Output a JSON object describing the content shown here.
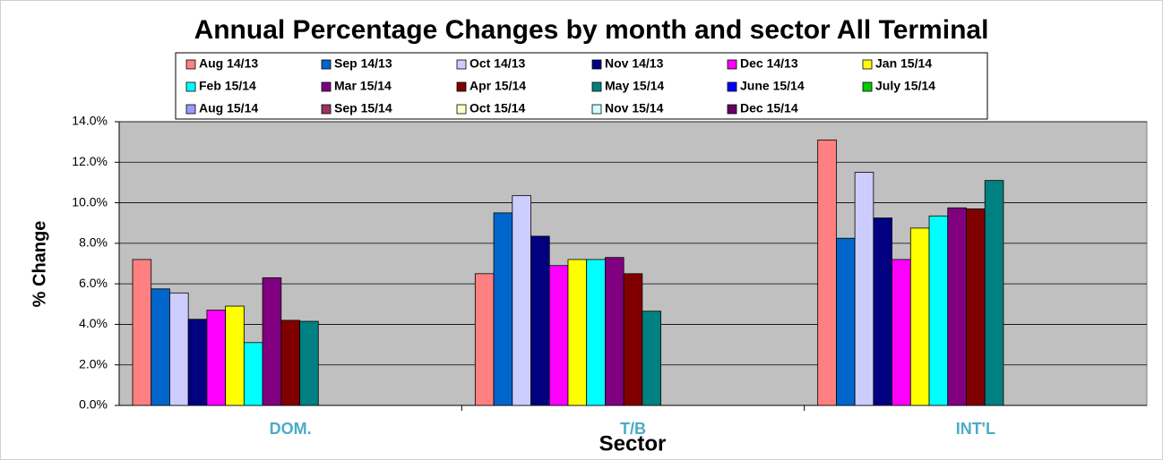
{
  "chart_data": {
    "type": "bar",
    "title": "Annual Percentage Changes by month and sector All Terminal",
    "x_label": "Sector",
    "y_label": "% Change",
    "categories": [
      "DOM.",
      "T/B",
      "INT'L"
    ],
    "ylim": [
      0,
      14
    ],
    "yticks": [
      {
        "value": 0,
        "label": "0.0%"
      },
      {
        "value": 2,
        "label": "2.0%"
      },
      {
        "value": 4,
        "label": "4.0%"
      },
      {
        "value": 6,
        "label": "6.0%"
      },
      {
        "value": 8,
        "label": "8.0%"
      },
      {
        "value": 10,
        "label": "10.0%"
      },
      {
        "value": 12,
        "label": "12.0%"
      },
      {
        "value": 14,
        "label": "14.0%"
      }
    ],
    "grid": true,
    "legend": "top",
    "series": [
      {
        "name": "Aug 14/13",
        "color": "#ff8080",
        "values": [
          7.2,
          6.5,
          13.1
        ]
      },
      {
        "name": "Sep 14/13",
        "color": "#0066cc",
        "values": [
          5.75,
          9.5,
          8.25
        ]
      },
      {
        "name": "Oct 14/13",
        "color": "#ccccff",
        "values": [
          5.55,
          10.35,
          11.5
        ]
      },
      {
        "name": "Nov 14/13",
        "color": "#000080",
        "values": [
          4.25,
          8.35,
          9.25
        ]
      },
      {
        "name": "Dec 14/13",
        "color": "#ff00ff",
        "values": [
          4.7,
          6.9,
          7.2
        ]
      },
      {
        "name": "Jan 15/14",
        "color": "#ffff00",
        "values": [
          4.9,
          7.2,
          8.75
        ]
      },
      {
        "name": "Feb 15/14",
        "color": "#00ffff",
        "values": [
          3.1,
          7.2,
          9.35
        ]
      },
      {
        "name": "Mar 15/14",
        "color": "#800080",
        "values": [
          6.3,
          7.3,
          9.75
        ]
      },
      {
        "name": "Apr 15/14",
        "color": "#800000",
        "values": [
          4.2,
          6.5,
          9.7
        ]
      },
      {
        "name": "May 15/14",
        "color": "#008080",
        "values": [
          4.15,
          4.65,
          11.1
        ]
      },
      {
        "name": "June 15/14",
        "color": "#0000ff",
        "values": [
          null,
          null,
          null
        ]
      },
      {
        "name": "July 15/14",
        "color": "#00cc00",
        "values": [
          null,
          null,
          null
        ]
      },
      {
        "name": "Aug 15/14",
        "color": "#9999ff",
        "values": [
          null,
          null,
          null
        ]
      },
      {
        "name": "Sep 15/14",
        "color": "#993366",
        "values": [
          null,
          null,
          null
        ]
      },
      {
        "name": "Oct 15/14",
        "color": "#ffffcc",
        "values": [
          null,
          null,
          null
        ]
      },
      {
        "name": "Nov 15/14",
        "color": "#ccffff",
        "values": [
          null,
          null,
          null
        ]
      },
      {
        "name": "Dec 15/14",
        "color": "#660066",
        "values": [
          null,
          null,
          null
        ]
      }
    ]
  }
}
